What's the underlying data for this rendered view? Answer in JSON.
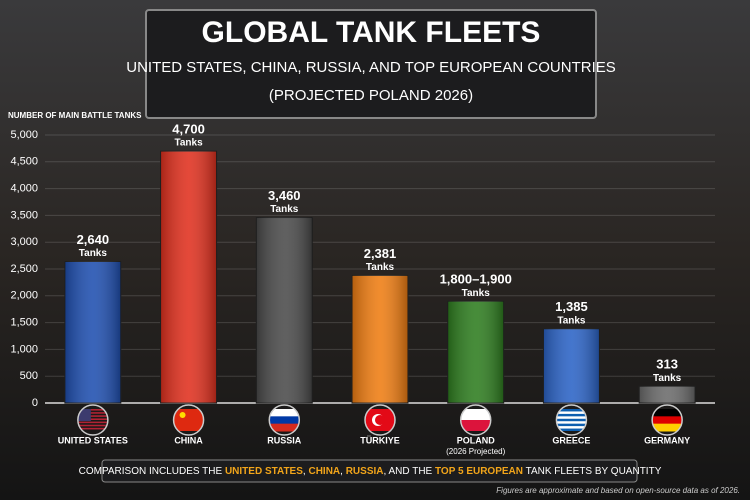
{
  "chart_data": {
    "type": "bar",
    "title": "GLOBAL TANK FLEETS",
    "subtitle_lines": [
      "UNITED STATES, CHINA, RUSSIA, AND TOP EUROPEAN COUNTRIES",
      "(PROJECTED POLAND 2026)"
    ],
    "y_label": "NUMBER OF MAIN BATTLE TANKS",
    "categories": [
      "UNITED STATES",
      "CHINA",
      "RUSSIA",
      "TÜRKIYE",
      "POLAND",
      "GREECE",
      "GERMANY"
    ],
    "category_note": {
      "index": 4,
      "text": "(2026 Projected)"
    },
    "values": [
      2640,
      4700,
      3460,
      2381,
      1900,
      1385,
      313
    ],
    "value_labels": [
      "2,640",
      "4,700",
      "3,460",
      "2,381",
      "1,800–1,900",
      "1,385",
      "313"
    ],
    "value_unit": "Tanks",
    "colors": [
      "#1f4fb0",
      "#e0301e",
      "#4a4a4a",
      "#ef7d12",
      "#2e7d1f",
      "#2b63c6",
      "#6b6b6b"
    ],
    "ylim": [
      0,
      5000
    ],
    "yticks": [
      0,
      500,
      {
        "value": 1000,
        "label": "1,000"
      },
      {
        "value": 1500,
        "label": "1,500"
      },
      {
        "value": 2000,
        "label": "2,000"
      },
      {
        "value": 2500,
        "label": "2,500"
      },
      {
        "value": 3000,
        "label": "3,000"
      },
      {
        "value": 3500,
        "label": "3,500"
      },
      {
        "value": 4000,
        "label": "4,000"
      },
      {
        "value": 4500,
        "label": "4,500"
      },
      {
        "value": 5000,
        "label": "5,000"
      }
    ],
    "grid": true,
    "footer_parts": [
      {
        "text": "COMPARISON INCLUDES THE ",
        "highlight": false
      },
      {
        "text": "UNITED STATES",
        "highlight": true
      },
      {
        "text": ", ",
        "highlight": false
      },
      {
        "text": "CHINA",
        "highlight": true
      },
      {
        "text": ", ",
        "highlight": false
      },
      {
        "text": "RUSSIA",
        "highlight": true
      },
      {
        "text": ", AND THE ",
        "highlight": false
      },
      {
        "text": "TOP 5 EUROPEAN",
        "highlight": true
      },
      {
        "text": " TANK FLEETS BY QUANTITY",
        "highlight": false
      }
    ],
    "source_note": "Figures are approximate and based on open-source data as of 2026."
  }
}
